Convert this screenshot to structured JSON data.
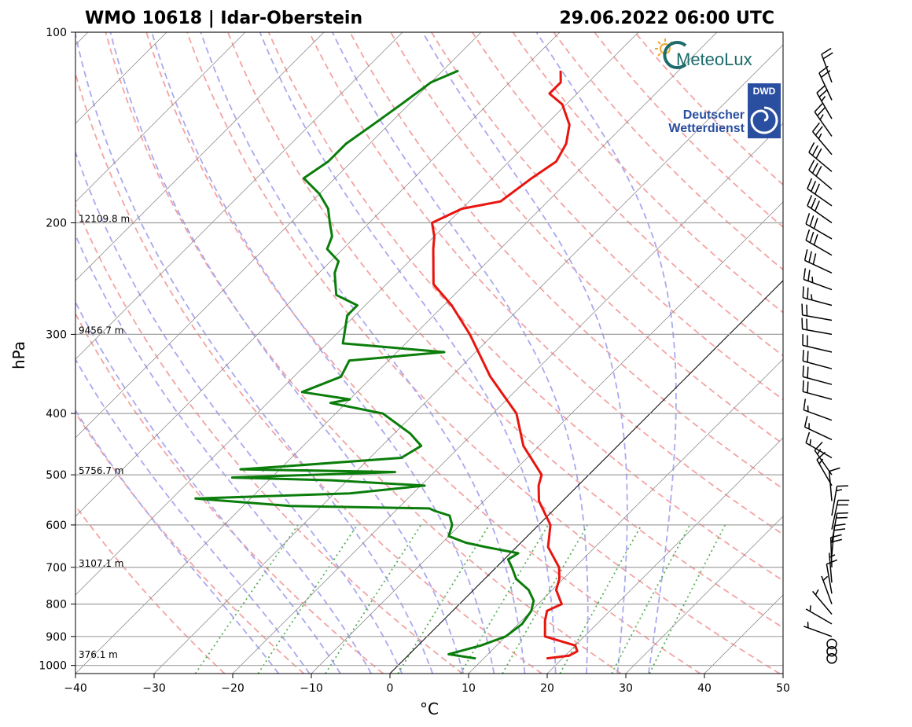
{
  "header": {
    "title_left": "WMO 10618 | Idar-Oberstein",
    "title_right": "29.06.2022 06:00 UTC"
  },
  "logos": {
    "meteolux": "MeteoLux",
    "dwd_badge": "DWD",
    "dwd_line1": "Deutscher",
    "dwd_line2": "Wetterdienst"
  },
  "colors": {
    "temperature": "#e8150f",
    "dewpoint": "#0a7d0a",
    "dry_adiabat": "#f4a3a3",
    "moist_adiabat": "#a9a9f0",
    "mixing_ratio": "#55b055",
    "isotherm": "#808080",
    "isobar": "#a0a0a0",
    "dwd_blue": "#2a4fa0",
    "meteolux_teal": "#1d6b6b"
  },
  "chart_data": {
    "type": "skew-t",
    "title": "WMO 10618 | Idar-Oberstein",
    "xlabel": "°C",
    "ylabel": "hPa",
    "xlim": [
      -40,
      50
    ],
    "ylim": [
      1030,
      100
    ],
    "xticks": [
      -40,
      -30,
      -20,
      -10,
      0,
      10,
      20,
      30,
      40,
      50
    ],
    "xtick_labels": [
      "−40",
      "−30",
      "−20",
      "−10",
      "0",
      "10",
      "20",
      "30",
      "40",
      "50"
    ],
    "yticks": [
      100,
      200,
      300,
      400,
      500,
      600,
      700,
      800,
      900,
      1000
    ],
    "ytick_labels": [
      "100",
      "200",
      "300",
      "400",
      "500",
      "600",
      "700",
      "800",
      "900",
      "1000"
    ],
    "height_labels": [
      {
        "pressure": 200,
        "text": "12109.8 m"
      },
      {
        "pressure": 300,
        "text": "9456.7 m"
      },
      {
        "pressure": 500,
        "text": "5756.7 m"
      },
      {
        "pressure": 700,
        "text": "3107.1 m"
      },
      {
        "pressure": 975,
        "text": "376.1 m"
      }
    ],
    "temperature_profile": [
      [
        975,
        18.0
      ],
      [
        965,
        20.5
      ],
      [
        950,
        21.0
      ],
      [
        930,
        20.0
      ],
      [
        900,
        15.0
      ],
      [
        850,
        13.0
      ],
      [
        820,
        12.0
      ],
      [
        800,
        13.0
      ],
      [
        760,
        10.5
      ],
      [
        730,
        9.5
      ],
      [
        700,
        8.0
      ],
      [
        650,
        4.0
      ],
      [
        600,
        1.5
      ],
      [
        550,
        -3.0
      ],
      [
        520,
        -5.0
      ],
      [
        500,
        -6.0
      ],
      [
        450,
        -12.0
      ],
      [
        400,
        -17.0
      ],
      [
        350,
        -25.0
      ],
      [
        300,
        -33.0
      ],
      [
        270,
        -39.0
      ],
      [
        250,
        -44.0
      ],
      [
        220,
        -48.5
      ],
      [
        210,
        -50.0
      ],
      [
        200,
        -52.0
      ],
      [
        190,
        -50.0
      ],
      [
        185,
        -46.0
      ],
      [
        170,
        -45.0
      ],
      [
        160,
        -44.0
      ],
      [
        150,
        -45.0
      ],
      [
        140,
        -47.0
      ],
      [
        130,
        -50.5
      ],
      [
        125,
        -53.5
      ],
      [
        120,
        -53.5
      ],
      [
        115,
        -55.0
      ]
    ],
    "dewpoint_profile": [
      [
        975,
        9.0
      ],
      [
        960,
        5.0
      ],
      [
        950,
        6.0
      ],
      [
        930,
        8.0
      ],
      [
        900,
        10.0
      ],
      [
        860,
        10.5
      ],
      [
        820,
        10.0
      ],
      [
        790,
        9.0
      ],
      [
        760,
        7.0
      ],
      [
        730,
        4.0
      ],
      [
        700,
        2.0
      ],
      [
        680,
        0.5
      ],
      [
        665,
        1.0
      ],
      [
        650,
        -4.0
      ],
      [
        640,
        -7.0
      ],
      [
        625,
        -10.0
      ],
      [
        600,
        -11.0
      ],
      [
        580,
        -12.5
      ],
      [
        570,
        -15.0
      ],
      [
        565,
        -16.0
      ],
      [
        560,
        -34.0
      ],
      [
        545,
        -47.0
      ],
      [
        535,
        -28.0
      ],
      [
        520,
        -19.5
      ],
      [
        510,
        -32.0
      ],
      [
        505,
        -45.0
      ],
      [
        495,
        -25.0
      ],
      [
        490,
        -45.0
      ],
      [
        485,
        -40.0
      ],
      [
        470,
        -26.0
      ],
      [
        450,
        -25.0
      ],
      [
        430,
        -28.0
      ],
      [
        400,
        -34.0
      ],
      [
        385,
        -42.0
      ],
      [
        380,
        -40.0
      ],
      [
        370,
        -47.0
      ],
      [
        350,
        -44.0
      ],
      [
        330,
        -45.0
      ],
      [
        320,
        -34.0
      ],
      [
        310,
        -48.0
      ],
      [
        280,
        -51.0
      ],
      [
        270,
        -51.0
      ],
      [
        260,
        -55.0
      ],
      [
        240,
        -58.0
      ],
      [
        230,
        -59.0
      ],
      [
        220,
        -62.0
      ],
      [
        210,
        -63.0
      ],
      [
        200,
        -65.0
      ],
      [
        190,
        -67.0
      ],
      [
        180,
        -70.0
      ],
      [
        170,
        -74.0
      ],
      [
        160,
        -73.0
      ],
      [
        150,
        -73.0
      ],
      [
        140,
        -72.0
      ],
      [
        130,
        -71.0
      ],
      [
        120,
        -70.0
      ],
      [
        115,
        -68.0
      ]
    ],
    "dry_adiabats_K": [
      250,
      260,
      270,
      280,
      290,
      300,
      310,
      320,
      330,
      340,
      350,
      360,
      370,
      380,
      390,
      400,
      410,
      420,
      430
    ],
    "moist_adiabats_C": [
      -16,
      -12,
      -8,
      -4,
      0,
      4,
      8,
      12,
      16,
      20,
      24,
      28,
      32
    ],
    "mixing_ratios_gkg": [
      0.5,
      1,
      2,
      4,
      7,
      10,
      16,
      24,
      32
    ],
    "wind_barbs": [
      {
        "pressure": 975,
        "speed_kt": 0,
        "direction": 0
      },
      {
        "pressure": 950,
        "speed_kt": 0,
        "direction": 0
      },
      {
        "pressure": 925,
        "speed_kt": 0,
        "direction": 0
      },
      {
        "pressure": 900,
        "speed_kt": 5,
        "direction": 290
      },
      {
        "pressure": 860,
        "speed_kt": 5,
        "direction": 300
      },
      {
        "pressure": 830,
        "speed_kt": 5,
        "direction": 320
      },
      {
        "pressure": 800,
        "speed_kt": 5,
        "direction": 340
      },
      {
        "pressure": 770,
        "speed_kt": 10,
        "direction": 350
      },
      {
        "pressure": 740,
        "speed_kt": 5,
        "direction": 355
      },
      {
        "pressure": 700,
        "speed_kt": 20,
        "direction": 358
      },
      {
        "pressure": 670,
        "speed_kt": 20,
        "direction": 5
      },
      {
        "pressure": 640,
        "speed_kt": 20,
        "direction": 10
      },
      {
        "pressure": 610,
        "speed_kt": 20,
        "direction": 12
      },
      {
        "pressure": 580,
        "speed_kt": 15,
        "direction": 10
      },
      {
        "pressure": 550,
        "speed_kt": 10,
        "direction": 355
      },
      {
        "pressure": 520,
        "speed_kt": 15,
        "direction": 330
      },
      {
        "pressure": 500,
        "speed_kt": 15,
        "direction": 325
      },
      {
        "pressure": 470,
        "speed_kt": 15,
        "direction": 300
      },
      {
        "pressure": 440,
        "speed_kt": 15,
        "direction": 295
      },
      {
        "pressure": 410,
        "speed_kt": 15,
        "direction": 290
      },
      {
        "pressure": 380,
        "speed_kt": 20,
        "direction": 285
      },
      {
        "pressure": 360,
        "speed_kt": 20,
        "direction": 285
      },
      {
        "pressure": 340,
        "speed_kt": 20,
        "direction": 285
      },
      {
        "pressure": 320,
        "speed_kt": 20,
        "direction": 283
      },
      {
        "pressure": 300,
        "speed_kt": 20,
        "direction": 280
      },
      {
        "pressure": 285,
        "speed_kt": 20,
        "direction": 280
      },
      {
        "pressure": 270,
        "speed_kt": 25,
        "direction": 285
      },
      {
        "pressure": 255,
        "speed_kt": 25,
        "direction": 290
      },
      {
        "pressure": 240,
        "speed_kt": 30,
        "direction": 295
      },
      {
        "pressure": 225,
        "speed_kt": 30,
        "direction": 300
      },
      {
        "pressure": 212,
        "speed_kt": 30,
        "direction": 300
      },
      {
        "pressure": 200,
        "speed_kt": 30,
        "direction": 305
      },
      {
        "pressure": 188,
        "speed_kt": 30,
        "direction": 305
      },
      {
        "pressure": 177,
        "speed_kt": 30,
        "direction": 310
      },
      {
        "pressure": 166,
        "speed_kt": 30,
        "direction": 310
      },
      {
        "pressure": 156,
        "speed_kt": 25,
        "direction": 320
      },
      {
        "pressure": 146,
        "speed_kt": 25,
        "direction": 325
      },
      {
        "pressure": 137,
        "speed_kt": 25,
        "direction": 330
      },
      {
        "pressure": 128,
        "speed_kt": 20,
        "direction": 335
      },
      {
        "pressure": 120,
        "speed_kt": 20,
        "direction": 340
      }
    ]
  }
}
